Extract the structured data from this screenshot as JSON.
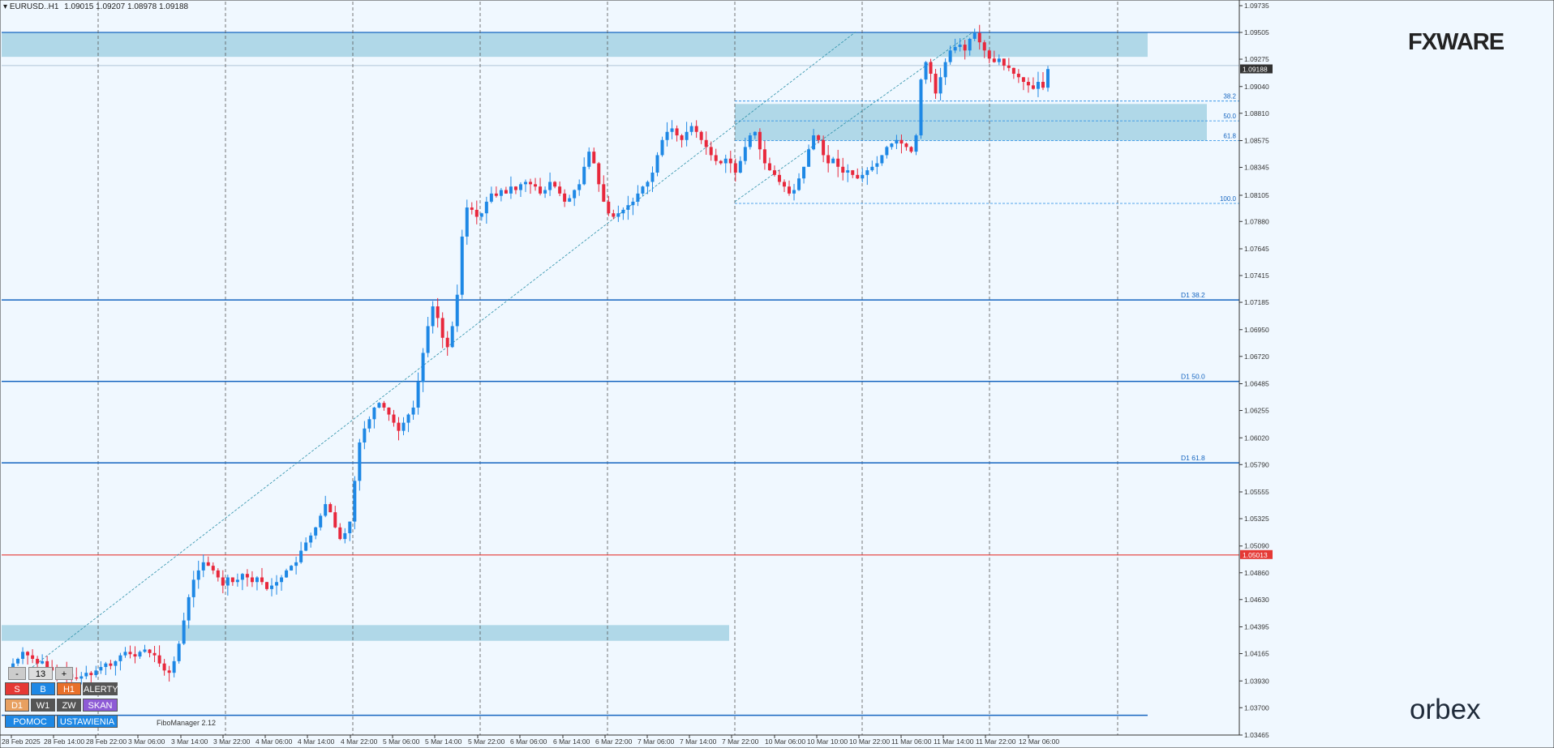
{
  "header": {
    "symbol": "EURUSD..H1",
    "ohlc": "1.09015 1.09207 1.08978 1.09188"
  },
  "brand": {
    "fxware": "FXWARE",
    "orbex": "orbex"
  },
  "indicator_name": "FiboManager 2.12",
  "panel": {
    "row1": [
      "-",
      "13",
      "+"
    ],
    "row2": [
      "S",
      "B",
      "H1",
      "ALERTY"
    ],
    "row3": [
      "D1",
      "W1",
      "ZW",
      "SKAN"
    ],
    "row4": [
      "POMOC",
      "USTAWIENIA"
    ]
  },
  "colors": {
    "bull": "#1e88e5",
    "bear": "#e8283c",
    "zone": "#a8d4e6",
    "level_line": "#1565c0",
    "current_price": "#e53935",
    "background": "#f0f8ff"
  },
  "chart_data": {
    "type": "candlestick",
    "symbol": "EURUSD..H1",
    "ylim": [
      1.03465,
      1.09735
    ],
    "y_ticks": [
      "1.09735",
      "1.09505",
      "1.09275",
      "1.09040",
      "1.08810",
      "1.08575",
      "1.08345",
      "1.08105",
      "1.07880",
      "1.07645",
      "1.07415",
      "1.07185",
      "1.06950",
      "1.06720",
      "1.06485",
      "1.06255",
      "1.06020",
      "1.05790",
      "1.05555",
      "1.05325",
      "1.05090",
      "1.04860",
      "1.04630",
      "1.04395",
      "1.04165",
      "1.03930",
      "1.03700",
      "1.03465"
    ],
    "x_ticks": [
      "28 Feb 2025",
      "28 Feb 14:00",
      "28 Feb 22:00",
      "3 Mar 06:00",
      "3 Mar 14:00",
      "3 Mar 22:00",
      "4 Mar 06:00",
      "4 Mar 14:00",
      "4 Mar 22:00",
      "5 Mar 06:00",
      "5 Mar 14:00",
      "5 Mar 22:00",
      "6 Mar 06:00",
      "6 Mar 14:00",
      "6 Mar 22:00",
      "7 Mar 06:00",
      "7 Mar 14:00",
      "7 Mar 22:00",
      "10 Mar 06:00",
      "10 Mar 10:00",
      "10 Mar 22:00",
      "11 Mar 06:00",
      "11 Mar 14:00",
      "11 Mar 22:00",
      "12 Mar 06:00"
    ],
    "close_path": [
      1.0405,
      1.0408,
      1.0412,
      1.0418,
      1.0415,
      1.0412,
      1.0408,
      1.041,
      1.0405,
      1.0402,
      1.0397,
      1.0401,
      1.0399,
      1.0396,
      1.0395,
      1.0397,
      1.04,
      1.0398,
      1.0402,
      1.0405,
      1.0408,
      1.0406,
      1.041,
      1.0415,
      1.0418,
      1.0416,
      1.0414,
      1.0418,
      1.042,
      1.0417,
      1.0415,
      1.0408,
      1.0402,
      1.04,
      1.041,
      1.0425,
      1.0445,
      1.0465,
      1.048,
      1.0488,
      1.0495,
      1.0492,
      1.0488,
      1.0482,
      1.0475,
      1.0482,
      1.0478,
      1.048,
      1.0485,
      1.0482,
      1.0478,
      1.0482,
      1.0478,
      1.0472,
      1.0475,
      1.0478,
      1.0482,
      1.0488,
      1.0492,
      1.0495,
      1.0505,
      1.0512,
      1.0518,
      1.0525,
      1.0535,
      1.0545,
      1.0538,
      1.0525,
      1.0515,
      1.052,
      1.053,
      1.0565,
      1.0598,
      1.061,
      1.0618,
      1.0628,
      1.0632,
      1.0628,
      1.0622,
      1.0615,
      1.0608,
      1.0615,
      1.0622,
      1.0628,
      1.065,
      1.0675,
      1.0698,
      1.0715,
      1.0705,
      1.0688,
      1.068,
      1.0698,
      1.0725,
      1.0775,
      1.08,
      1.0798,
      1.0792,
      1.0795,
      1.0805,
      1.0812,
      1.081,
      1.0815,
      1.0812,
      1.0818,
      1.0815,
      1.082,
      1.0822,
      1.082,
      1.0818,
      1.0812,
      1.0815,
      1.0822,
      1.0818,
      1.0812,
      1.0805,
      1.0808,
      1.0815,
      1.082,
      1.0835,
      1.0848,
      1.0838,
      1.082,
      1.0805,
      1.0795,
      1.0792,
      1.0795,
      1.0798,
      1.0802,
      1.0805,
      1.0812,
      1.0818,
      1.0822,
      1.083,
      1.0845,
      1.0858,
      1.0865,
      1.0868,
      1.0862,
      1.0858,
      1.0865,
      1.087,
      1.0865,
      1.0858,
      1.0852,
      1.0845,
      1.084,
      1.0838,
      1.0842,
      1.0838,
      1.083,
      1.084,
      1.0852,
      1.0862,
      1.0865,
      1.085,
      1.0838,
      1.0832,
      1.0828,
      1.0822,
      1.0818,
      1.0812,
      1.0815,
      1.0825,
      1.0835,
      1.085,
      1.0862,
      1.0858,
      1.0845,
      1.0838,
      1.0842,
      1.0835,
      1.083,
      1.0832,
      1.0828,
      1.0825,
      1.0828,
      1.0832,
      1.0835,
      1.0838,
      1.0845,
      1.0852,
      1.0855,
      1.0858,
      1.0855,
      1.0852,
      1.0848,
      1.0862,
      1.091,
      1.0925,
      1.0915,
      1.0898,
      1.0912,
      1.0925,
      1.0935,
      1.0938,
      1.094,
      1.0935,
      1.0945,
      1.095,
      1.0942,
      1.0935,
      1.0928,
      1.0925,
      1.0928,
      1.0922,
      1.092,
      1.0915,
      1.0912,
      1.0908,
      1.0905,
      1.0902,
      1.0908,
      1.0903,
      1.0919
    ],
    "levels": [
      {
        "label": "D1 38.2",
        "price": 1.07205
      },
      {
        "label": "D1 50.0",
        "price": 1.06505
      },
      {
        "label": "D1 61.8",
        "price": 1.05805
      }
    ],
    "fibo_retracement": [
      {
        "label": "38.2",
        "price": 1.08915
      },
      {
        "label": "50.0",
        "price": 1.08745
      },
      {
        "label": "61.8",
        "price": 1.08575
      },
      {
        "label": "100.0",
        "price": 1.08035
      }
    ],
    "zones": [
      {
        "from": 1.09295,
        "to": 1.09505
      },
      {
        "from": 1.08575,
        "to": 1.0889
      },
      {
        "from": 1.04275,
        "to": 1.0441
      }
    ],
    "current_price": "1.09188",
    "marked_price": "1.05013",
    "bottom_line_price": 1.03635
  }
}
